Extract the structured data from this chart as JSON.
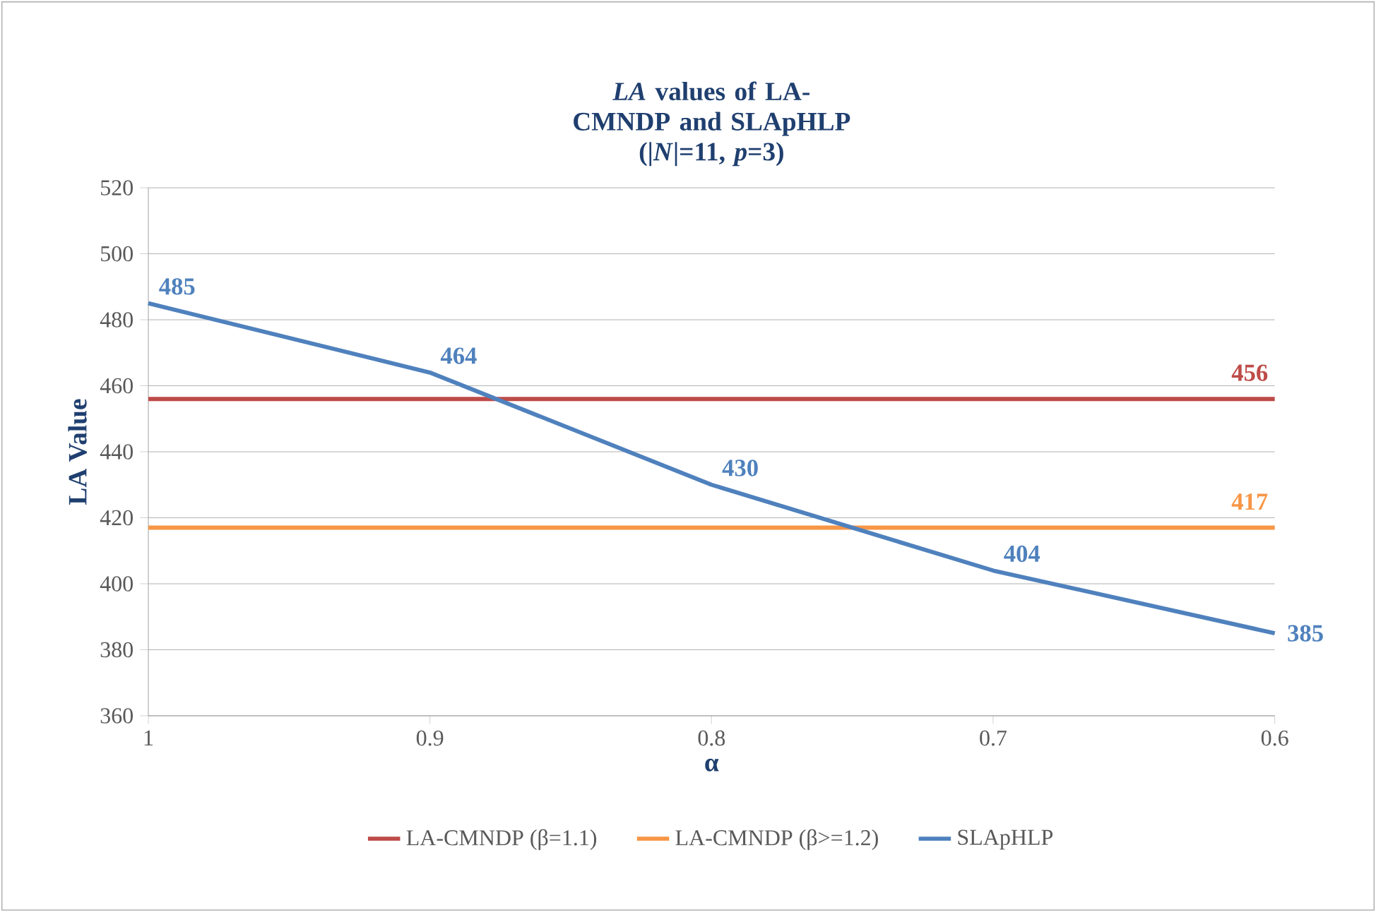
{
  "chart_data": {
    "type": "line",
    "title": "*LA* values of LA-CMNDP and SLApHLP",
    "subtitle": "(|*N*|=11, *p*=3)",
    "xlabel": "α",
    "ylabel": "LA Value",
    "categories": [
      "1",
      "0.9",
      "0.8",
      "0.7",
      "0.6"
    ],
    "series": [
      {
        "name": "LA-CMNDP (β=1.1)",
        "color": "#be4b48",
        "values": [
          456,
          456,
          456,
          456,
          456
        ],
        "value_labels": [
          null,
          null,
          null,
          null,
          "456"
        ]
      },
      {
        "name": "LA-CMNDP (β>=1.2)",
        "color": "#f79646",
        "values": [
          417,
          417,
          417,
          417,
          417
        ],
        "value_labels": [
          null,
          null,
          null,
          null,
          "417"
        ]
      },
      {
        "name": "SLApHLP",
        "color": "#4f81bd",
        "values": [
          485,
          464,
          430,
          404,
          385
        ],
        "value_labels": [
          "485",
          "464",
          "430",
          "404",
          "385"
        ]
      }
    ],
    "ylim": [
      360,
      520
    ],
    "yticks": [
      360,
      380,
      400,
      420,
      440,
      460,
      480,
      500,
      520
    ],
    "grid": "y",
    "legend": "bottom"
  }
}
